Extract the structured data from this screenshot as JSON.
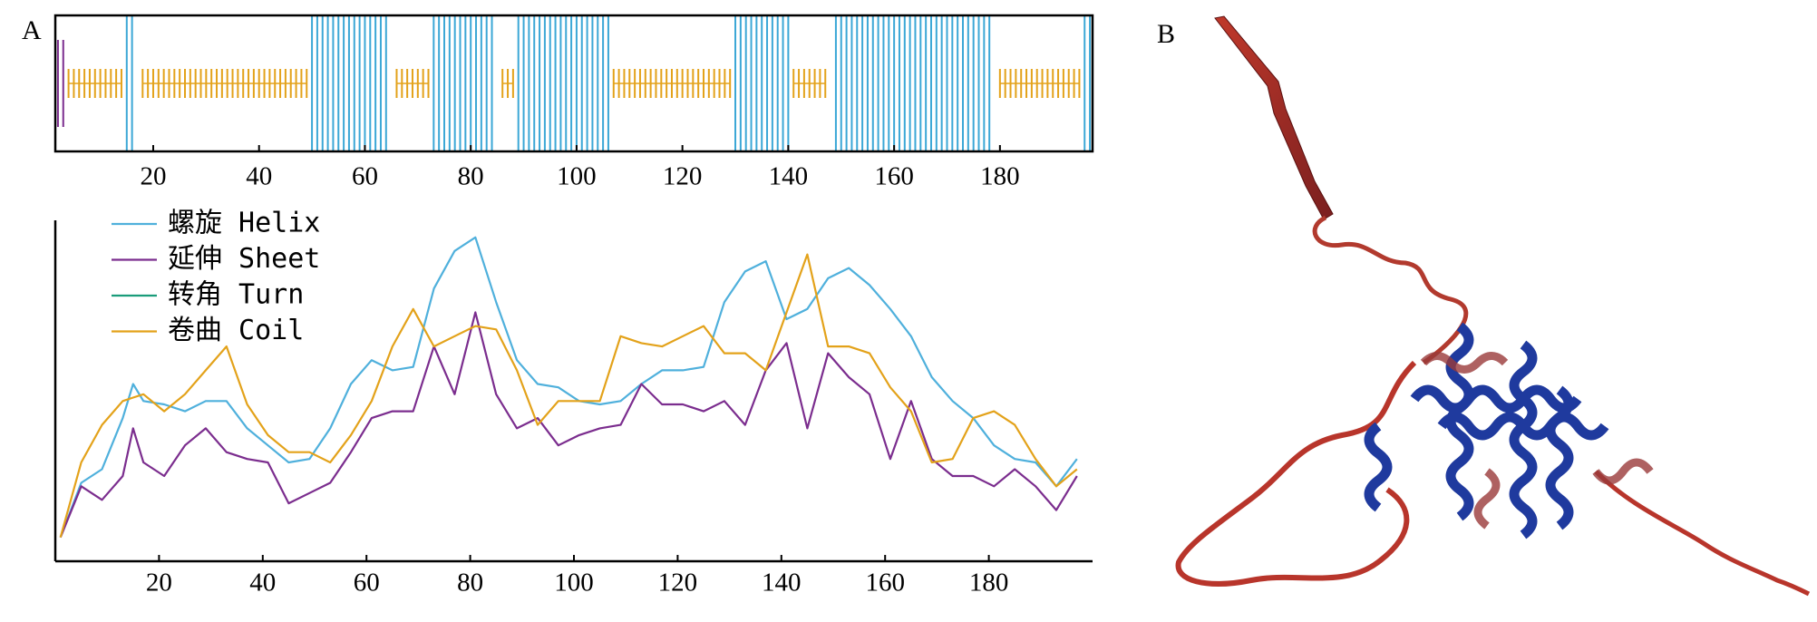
{
  "panels": {
    "a": "A",
    "b": "B"
  },
  "chart_data": [
    {
      "type": "track",
      "xlim": [
        1.5,
        197.5
      ],
      "xticks": [
        20,
        40,
        60,
        80,
        100,
        120,
        140,
        160,
        180
      ],
      "tracks": [
        {
          "color": "#3ba7d6",
          "ranges": [
            [
              15,
              16
            ],
            [
              50,
              64
            ],
            [
              73,
              84
            ],
            [
              89,
              106
            ],
            [
              130,
              140
            ],
            [
              149,
              178
            ],
            [
              196,
              197
            ]
          ]
        },
        {
          "color": "#7b2d8e",
          "ranges": [
            [
              2,
              3
            ]
          ]
        },
        {
          "color": "#e3a21a",
          "ranges": [
            [
              4,
              14
            ],
            [
              18,
              49
            ],
            [
              66,
              72
            ],
            [
              86,
              88
            ],
            [
              107,
              129
            ],
            [
              141,
              147
            ],
            [
              180,
              195
            ]
          ]
        }
      ]
    },
    {
      "type": "line",
      "xlim": [
        0,
        200
      ],
      "ylim": [
        0,
        1
      ],
      "xticks": [
        20,
        40,
        60,
        80,
        100,
        120,
        140,
        160,
        180
      ],
      "legend": "upper left",
      "x": [
        1,
        5,
        9,
        13,
        15,
        17,
        21,
        25,
        29,
        33,
        37,
        41,
        45,
        49,
        53,
        57,
        61,
        65,
        69,
        73,
        77,
        81,
        85,
        89,
        93,
        97,
        101,
        105,
        109,
        113,
        117,
        121,
        125,
        129,
        133,
        137,
        141,
        145,
        149,
        153,
        157,
        161,
        165,
        169,
        173,
        177,
        181,
        185,
        189,
        193,
        197
      ],
      "series": [
        {
          "name": "螺旋 Helix",
          "color": "#4fb0dc",
          "values": [
            0.07,
            0.23,
            0.27,
            0.42,
            0.52,
            0.47,
            0.46,
            0.44,
            0.47,
            0.47,
            0.39,
            0.34,
            0.29,
            0.3,
            0.39,
            0.52,
            0.59,
            0.56,
            0.57,
            0.8,
            0.91,
            0.95,
            0.76,
            0.59,
            0.52,
            0.51,
            0.47,
            0.46,
            0.47,
            0.52,
            0.56,
            0.56,
            0.57,
            0.76,
            0.85,
            0.88,
            0.71,
            0.74,
            0.83,
            0.86,
            0.81,
            0.74,
            0.66,
            0.54,
            0.47,
            0.42,
            0.34,
            0.3,
            0.29,
            0.22,
            0.3
          ]
        },
        {
          "name": "延伸 Sheet",
          "color": "#7b2d8e",
          "values": [
            0.07,
            0.22,
            0.18,
            0.25,
            0.39,
            0.29,
            0.25,
            0.34,
            0.39,
            0.32,
            0.3,
            0.29,
            0.17,
            0.2,
            0.23,
            0.32,
            0.42,
            0.44,
            0.44,
            0.63,
            0.49,
            0.73,
            0.49,
            0.39,
            0.42,
            0.34,
            0.37,
            0.39,
            0.4,
            0.52,
            0.46,
            0.46,
            0.44,
            0.47,
            0.4,
            0.56,
            0.64,
            0.39,
            0.61,
            0.54,
            0.49,
            0.3,
            0.47,
            0.3,
            0.25,
            0.25,
            0.22,
            0.27,
            0.22,
            0.15,
            0.25
          ]
        },
        {
          "name": "转角 Turn",
          "color": "#1a9c7a",
          "values": [
            null,
            null,
            null,
            null,
            null,
            null,
            null,
            null,
            null,
            null,
            null,
            null,
            null,
            null,
            null,
            null,
            null,
            null,
            null,
            null,
            null,
            null,
            null,
            null,
            null,
            null,
            null,
            null,
            null,
            null,
            null,
            null,
            null,
            null,
            null,
            null,
            null,
            null,
            null,
            null,
            null,
            null,
            null,
            null,
            null,
            null,
            null,
            null,
            null,
            null,
            null
          ]
        },
        {
          "name": "卷曲 Coil",
          "color": "#e3a21a",
          "values": [
            0.07,
            0.29,
            0.4,
            0.47,
            0.48,
            0.49,
            0.44,
            0.49,
            0.56,
            0.63,
            0.46,
            0.37,
            0.32,
            0.32,
            0.29,
            0.37,
            0.47,
            0.63,
            0.74,
            0.63,
            0.66,
            0.69,
            0.68,
            0.56,
            0.4,
            0.47,
            0.47,
            0.47,
            0.66,
            0.64,
            0.63,
            0.66,
            0.69,
            0.61,
            0.61,
            0.56,
            0.73,
            0.9,
            0.63,
            0.63,
            0.61,
            0.51,
            0.44,
            0.29,
            0.3,
            0.42,
            0.44,
            0.4,
            0.3,
            0.22,
            0.27
          ]
        }
      ]
    }
  ]
}
